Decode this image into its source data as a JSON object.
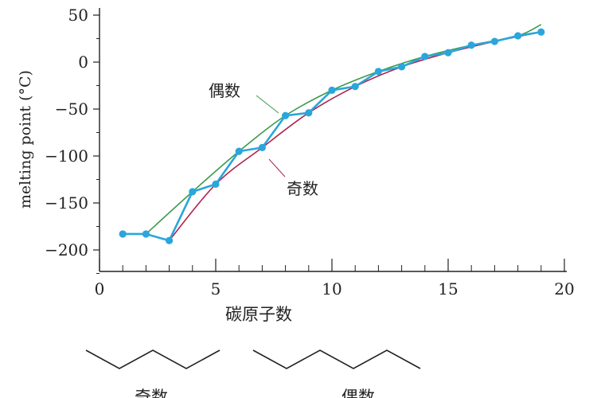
{
  "chart_data": {
    "type": "line",
    "title": "",
    "xlabel": "碳原子数",
    "ylabel": "melting point (°C)",
    "xlim": [
      0,
      21
    ],
    "ylim": [
      -225,
      60
    ],
    "xticks": [
      0,
      5,
      10,
      15,
      20
    ],
    "yticks": [
      50,
      0,
      -50,
      -100,
      -150,
      -200
    ],
    "ytick_labels": [
      "50",
      "0",
      "−50",
      "−100",
      "−150",
      "−200"
    ],
    "series": [
      {
        "name": "melting point",
        "x": [
          1,
          2,
          3,
          4,
          5,
          6,
          7,
          8,
          9,
          10,
          11,
          12,
          13,
          14,
          15,
          16,
          17,
          18,
          19
        ],
        "values": [
          -183,
          -183,
          -190,
          -138,
          -130,
          -95,
          -91,
          -57,
          -54,
          -30,
          -26,
          -10,
          -5,
          6,
          10,
          18,
          22,
          28,
          32
        ]
      }
    ],
    "even_curve": {
      "name": "偶数",
      "x": [
        2,
        4,
        6,
        8,
        10,
        12,
        14,
        16,
        18,
        19
      ],
      "values": [
        -183,
        -138,
        -95,
        -57,
        -30,
        -10,
        6,
        18,
        28,
        40
      ]
    },
    "odd_curve": {
      "name": "奇数",
      "x": [
        3,
        5,
        7,
        9,
        11,
        13,
        15,
        17,
        19
      ],
      "values": [
        -190,
        -130,
        -91,
        -54,
        -26,
        -5,
        10,
        22,
        32
      ]
    },
    "annotations": [
      {
        "text": "偶数",
        "target": "even_curve"
      },
      {
        "text": "奇数",
        "target": "odd_curve"
      }
    ],
    "structure_labels": [
      "奇数",
      "偶数"
    ]
  },
  "colors": {
    "data_line": "#2aa6dc",
    "data_marker": "#2aa6dc",
    "even_curve": "#3a9a4a",
    "odd_curve": "#b0234a",
    "axis": "#222222"
  }
}
